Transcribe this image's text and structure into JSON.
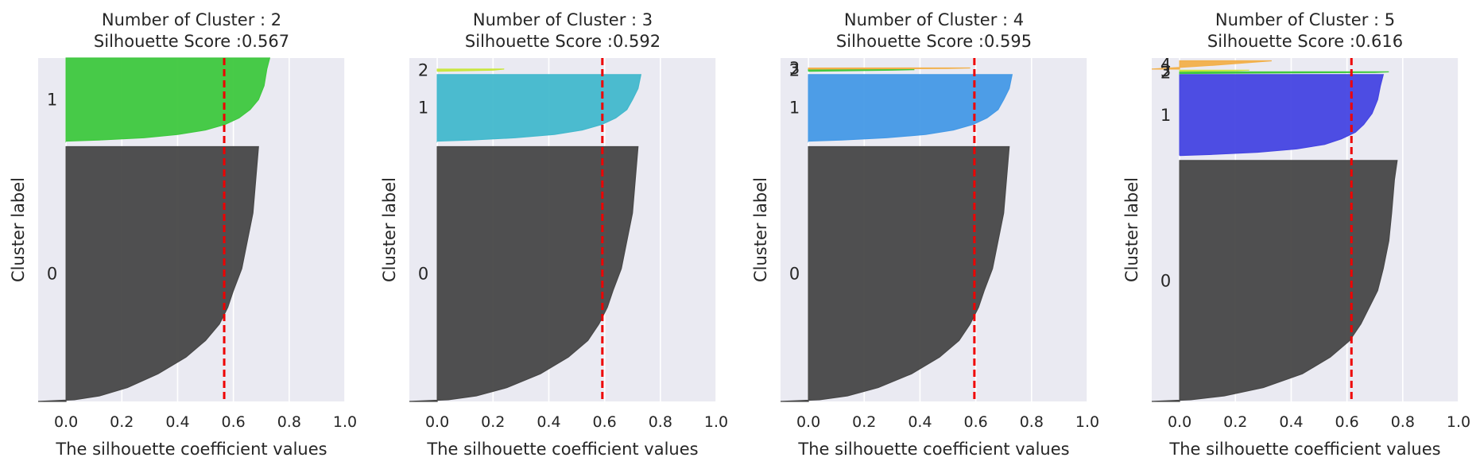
{
  "chart_data": [
    {
      "type": "area",
      "title_line1": "Number of Cluster : 2",
      "title_line2": "Silhouette Score :0.567",
      "xlabel": "The silhouette coefficient values",
      "ylabel": "Cluster label",
      "xlim": [
        -0.1,
        1.0
      ],
      "xticks": [
        "0.0",
        "0.2",
        "0.4",
        "0.6",
        "0.8",
        "1.0"
      ],
      "xtick_values": [
        0.0,
        0.2,
        0.4,
        0.6,
        0.8,
        1.0
      ],
      "ylim": [
        0,
        620
      ],
      "grid": true,
      "silhouette_score": 0.567,
      "clusters": [
        {
          "label": "0",
          "color": "#474747",
          "y_start": 0,
          "y_end": 460,
          "profile": [
            [
              0,
              -0.1
            ],
            [
              3,
              0.03
            ],
            [
              10,
              0.12
            ],
            [
              25,
              0.22
            ],
            [
              50,
              0.33
            ],
            [
              80,
              0.43
            ],
            [
              110,
              0.5
            ],
            [
              140,
              0.55
            ],
            [
              170,
              0.58
            ],
            [
              200,
              0.6
            ],
            [
              240,
              0.63
            ],
            [
              290,
              0.65
            ],
            [
              340,
              0.67
            ],
            [
              400,
              0.68
            ],
            [
              460,
              0.69
            ]
          ]
        },
        {
          "label": "1",
          "color": "#3ec83e",
          "y_start": 470,
          "y_end": 620,
          "profile": [
            [
              470,
              0.0
            ],
            [
              472,
              0.12
            ],
            [
              476,
              0.28
            ],
            [
              482,
              0.4
            ],
            [
              490,
              0.5
            ],
            [
              500,
              0.57
            ],
            [
              512,
              0.62
            ],
            [
              527,
              0.66
            ],
            [
              545,
              0.69
            ],
            [
              570,
              0.71
            ],
            [
              600,
              0.72
            ],
            [
              620,
              0.73
            ]
          ]
        }
      ]
    },
    {
      "type": "area",
      "title_line1": "Number of Cluster : 3",
      "title_line2": "Silhouette Score :0.592",
      "xlabel": "The silhouette coefficient values",
      "ylabel": "Cluster label",
      "xlim": [
        -0.1,
        1.0
      ],
      "xticks": [
        "0.0",
        "0.2",
        "0.4",
        "0.6",
        "0.8",
        "1.0"
      ],
      "xtick_values": [
        0.0,
        0.2,
        0.4,
        0.6,
        0.8,
        1.0
      ],
      "ylim": [
        0,
        620
      ],
      "grid": true,
      "silhouette_score": 0.592,
      "clusters": [
        {
          "label": "0",
          "color": "#474747",
          "y_start": 0,
          "y_end": 460,
          "profile": [
            [
              0,
              -0.1
            ],
            [
              3,
              0.04
            ],
            [
              10,
              0.14
            ],
            [
              25,
              0.25
            ],
            [
              50,
              0.37
            ],
            [
              80,
              0.47
            ],
            [
              110,
              0.54
            ],
            [
              140,
              0.58
            ],
            [
              170,
              0.61
            ],
            [
              200,
              0.63
            ],
            [
              240,
              0.66
            ],
            [
              290,
              0.68
            ],
            [
              340,
              0.7
            ],
            [
              400,
              0.71
            ],
            [
              460,
              0.72
            ]
          ]
        },
        {
          "label": "1",
          "color": "#42b8cc",
          "y_start": 470,
          "y_end": 590,
          "profile": [
            [
              470,
              0.0
            ],
            [
              472,
              0.12
            ],
            [
              476,
              0.28
            ],
            [
              482,
              0.42
            ],
            [
              490,
              0.52
            ],
            [
              500,
              0.59
            ],
            [
              512,
              0.64
            ],
            [
              527,
              0.68
            ],
            [
              545,
              0.7
            ],
            [
              565,
              0.72
            ],
            [
              590,
              0.73
            ]
          ]
        },
        {
          "label": "2",
          "color": "#c8e63c",
          "y_start": 596,
          "y_end": 600,
          "profile": [
            [
              596,
              0.0
            ],
            [
              598,
              0.2
            ],
            [
              600,
              0.24
            ]
          ]
        }
      ]
    },
    {
      "type": "area",
      "title_line1": "Number of Cluster : 4",
      "title_line2": "Silhouette Score :0.595",
      "xlabel": "The silhouette coefficient values",
      "ylabel": "Cluster label",
      "xlim": [
        -0.1,
        1.0
      ],
      "xticks": [
        "0.0",
        "0.2",
        "0.4",
        "0.6",
        "0.8",
        "1.0"
      ],
      "xtick_values": [
        0.0,
        0.2,
        0.4,
        0.6,
        0.8,
        1.0
      ],
      "ylim": [
        0,
        620
      ],
      "grid": true,
      "silhouette_score": 0.595,
      "clusters": [
        {
          "label": "0",
          "color": "#474747",
          "y_start": 0,
          "y_end": 460,
          "profile": [
            [
              0,
              -0.1
            ],
            [
              3,
              0.04
            ],
            [
              10,
              0.14
            ],
            [
              25,
              0.25
            ],
            [
              50,
              0.37
            ],
            [
              80,
              0.47
            ],
            [
              110,
              0.54
            ],
            [
              140,
              0.58
            ],
            [
              170,
              0.61
            ],
            [
              200,
              0.63
            ],
            [
              240,
              0.66
            ],
            [
              290,
              0.68
            ],
            [
              340,
              0.7
            ],
            [
              400,
              0.71
            ],
            [
              460,
              0.72
            ]
          ]
        },
        {
          "label": "1",
          "color": "#4499e6",
          "y_start": 470,
          "y_end": 590,
          "profile": [
            [
              470,
              0.0
            ],
            [
              472,
              0.12
            ],
            [
              476,
              0.28
            ],
            [
              482,
              0.42
            ],
            [
              490,
              0.52
            ],
            [
              500,
              0.59
            ],
            [
              512,
              0.64
            ],
            [
              527,
              0.68
            ],
            [
              545,
              0.7
            ],
            [
              565,
              0.72
            ],
            [
              590,
              0.73
            ]
          ]
        },
        {
          "label": "2",
          "color": "#3ec83e",
          "y_start": 596,
          "y_end": 599,
          "profile": [
            [
              596,
              0.0
            ],
            [
              598,
              0.3
            ],
            [
              599,
              0.38
            ]
          ]
        },
        {
          "label": "3",
          "color": "#f2b04a",
          "y_start": 600,
          "y_end": 602,
          "profile": [
            [
              600,
              0.0
            ],
            [
              601,
              0.5
            ],
            [
              602,
              0.58
            ]
          ]
        }
      ]
    },
    {
      "type": "area",
      "title_line1": "Number of Cluster : 5",
      "title_line2": "Silhouette Score :0.616",
      "xlabel": "The silhouette coefficient values",
      "ylabel": "Cluster label",
      "xlim": [
        -0.1,
        1.0
      ],
      "xticks": [
        "0.0",
        "0.2",
        "0.4",
        "0.6",
        "0.8",
        "1.0"
      ],
      "xtick_values": [
        0.0,
        0.2,
        0.4,
        0.6,
        0.8,
        1.0
      ],
      "ylim": [
        0,
        620
      ],
      "grid": true,
      "silhouette_score": 0.616,
      "clusters": [
        {
          "label": "0",
          "color": "#474747",
          "y_start": 0,
          "y_end": 435,
          "profile": [
            [
              0,
              -0.1
            ],
            [
              3,
              0.04
            ],
            [
              10,
              0.16
            ],
            [
              25,
              0.3
            ],
            [
              50,
              0.44
            ],
            [
              80,
              0.54
            ],
            [
              110,
              0.61
            ],
            [
              140,
              0.65
            ],
            [
              170,
              0.68
            ],
            [
              200,
              0.71
            ],
            [
              240,
              0.73
            ],
            [
              290,
              0.75
            ],
            [
              340,
              0.76
            ],
            [
              400,
              0.77
            ],
            [
              435,
              0.78
            ]
          ]
        },
        {
          "label": "1",
          "color": "#4545e2",
          "y_start": 444,
          "y_end": 590,
          "profile": [
            [
              444,
              0.0
            ],
            [
              446,
              0.12
            ],
            [
              450,
              0.28
            ],
            [
              456,
              0.42
            ],
            [
              464,
              0.52
            ],
            [
              474,
              0.58
            ],
            [
              486,
              0.63
            ],
            [
              500,
              0.66
            ],
            [
              520,
              0.69
            ],
            [
              545,
              0.71
            ],
            [
              570,
              0.72
            ],
            [
              590,
              0.73
            ]
          ]
        },
        {
          "label": "2",
          "color": "#3ec83e",
          "y_start": 592,
          "y_end": 595,
          "profile": [
            [
              592,
              0.0
            ],
            [
              594,
              0.7
            ],
            [
              595,
              0.75
            ]
          ]
        },
        {
          "label": "3",
          "color": "#c8e63c",
          "y_start": 596,
          "y_end": 598,
          "profile": [
            [
              596,
              0.0
            ],
            [
              597,
              0.2
            ],
            [
              598,
              0.25
            ]
          ]
        },
        {
          "label": "4",
          "color": "#f2b04a",
          "y_start": 600,
          "y_end": 615,
          "profile": [
            [
              600,
              -0.1
            ],
            [
              603,
              0.0
            ],
            [
              607,
              0.12
            ],
            [
              612,
              0.25
            ],
            [
              615,
              0.33
            ]
          ]
        }
      ]
    }
  ]
}
